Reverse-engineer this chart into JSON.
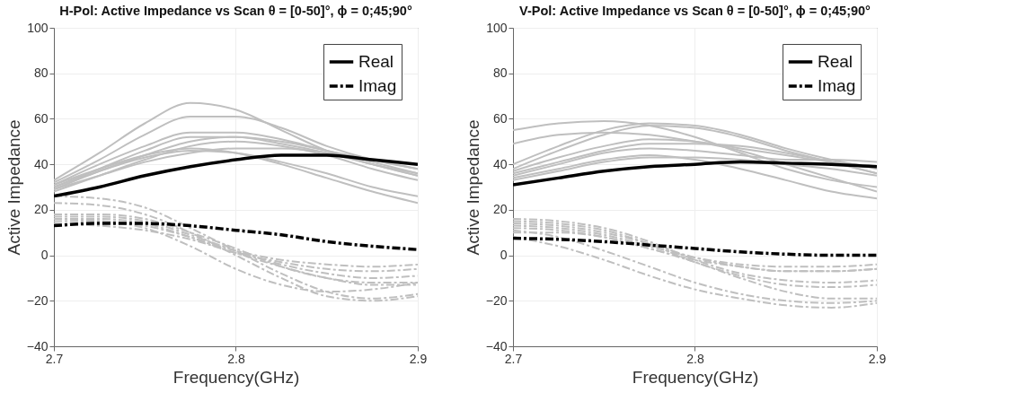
{
  "chart_data": [
    {
      "type": "line",
      "title": "H-Pol: Active Impedance vs Scan θ = [0-50]°, ϕ = 0;45;90°",
      "xlabel": "Frequency(GHz)",
      "ylabel": "Active Impedance",
      "x": [
        2.7,
        2.725,
        2.75,
        2.775,
        2.8,
        2.825,
        2.85,
        2.875,
        2.9
      ],
      "xlim": [
        2.7,
        2.9
      ],
      "xticks": [
        2.7,
        2.8,
        2.9
      ],
      "ylim": [
        -40,
        100
      ],
      "yticks": [
        -40,
        -20,
        0,
        20,
        40,
        60,
        80,
        100
      ],
      "grid": true,
      "legend": "top right",
      "marker": "none",
      "series": [
        {
          "color": "#bfbfbf",
          "line_style": "solid",
          "values": [
            33,
            45,
            58,
            67,
            64,
            55,
            46,
            40,
            35
          ]
        },
        {
          "color": "#bfbfbf",
          "line_style": "solid",
          "values": [
            32,
            42,
            53,
            61,
            61,
            56,
            48,
            42,
            38
          ]
        },
        {
          "color": "#bfbfbf",
          "line_style": "solid",
          "values": [
            31,
            40,
            48,
            54,
            54,
            51,
            46,
            42,
            38
          ]
        },
        {
          "color": "#bfbfbf",
          "line_style": "solid",
          "values": [
            30,
            38,
            46,
            52,
            52,
            49,
            45,
            40,
            36
          ]
        },
        {
          "color": "#bfbfbf",
          "line_style": "solid",
          "values": [
            29,
            37,
            44,
            50,
            52,
            50,
            46,
            41,
            36
          ]
        },
        {
          "color": "#bfbfbf",
          "line_style": "solid",
          "values": [
            28,
            35,
            42,
            48,
            50,
            48,
            44,
            38,
            33
          ]
        },
        {
          "color": "#bfbfbf",
          "line_style": "solid",
          "values": [
            30,
            37,
            43,
            46,
            45,
            41,
            36,
            30,
            26
          ]
        },
        {
          "color": "#bfbfbf",
          "line_style": "solid",
          "values": [
            31,
            38,
            44,
            47,
            45,
            40,
            34,
            28,
            23
          ]
        },
        {
          "color": "#bfbfbf",
          "line_style": "solid",
          "values": [
            29,
            35,
            41,
            45,
            47,
            47,
            45,
            40,
            35
          ]
        },
        {
          "color": "#bfbfbf",
          "line_style": "dashed",
          "values": [
            26,
            25,
            21,
            12,
            2,
            -8,
            -16,
            -19,
            -17
          ]
        },
        {
          "color": "#bfbfbf",
          "line_style": "dashed",
          "values": [
            23,
            22,
            18,
            10,
            0,
            -10,
            -18,
            -20,
            -18
          ]
        },
        {
          "color": "#bfbfbf",
          "line_style": "dashed",
          "values": [
            18,
            18,
            16,
            10,
            3,
            -5,
            -10,
            -12,
            -12
          ]
        },
        {
          "color": "#bfbfbf",
          "line_style": "dashed",
          "values": [
            17,
            17,
            15,
            9,
            2,
            -4,
            -8,
            -10,
            -9
          ]
        },
        {
          "color": "#bfbfbf",
          "line_style": "dashed",
          "values": [
            16,
            16,
            14,
            8,
            1,
            -3,
            -6,
            -7,
            -6
          ]
        },
        {
          "color": "#bfbfbf",
          "line_style": "dashed",
          "values": [
            15,
            15,
            13,
            8,
            2,
            -2,
            -4,
            -5,
            -4
          ]
        },
        {
          "color": "#bfbfbf",
          "line_style": "dashed",
          "values": [
            14,
            13,
            11,
            7,
            1,
            -5,
            -10,
            -13,
            -13
          ]
        },
        {
          "color": "#bfbfbf",
          "line_style": "dashed",
          "values": [
            16,
            15,
            12,
            4,
            -6,
            -13,
            -16,
            -15,
            -12
          ]
        },
        {
          "name": "Real",
          "color": "#000000",
          "line_style": "solid",
          "values": [
            26,
            30,
            35,
            39,
            42,
            44,
            44,
            42,
            40
          ]
        },
        {
          "name": "Imag",
          "color": "#000000",
          "line_style": "dashed",
          "values": [
            13,
            14,
            14,
            13,
            11,
            9,
            6,
            4,
            2.5
          ]
        }
      ]
    },
    {
      "type": "line",
      "title": "V-Pol: Active Impedance vs Scan θ = [0-50]°, ϕ = 0;45;90°",
      "xlabel": "Frequency(GHz)",
      "ylabel": "Active Impedance",
      "x": [
        2.7,
        2.725,
        2.75,
        2.775,
        2.8,
        2.825,
        2.85,
        2.875,
        2.9
      ],
      "xlim": [
        2.7,
        2.9
      ],
      "xticks": [
        2.7,
        2.8,
        2.9
      ],
      "ylim": [
        -40,
        100
      ],
      "yticks": [
        -40,
        -20,
        0,
        20,
        40,
        60,
        80,
        100
      ],
      "grid": true,
      "legend": "top right",
      "marker": "none",
      "series": [
        {
          "color": "#bfbfbf",
          "line_style": "solid",
          "values": [
            55,
            58,
            59,
            57,
            52,
            45,
            38,
            33,
            30
          ]
        },
        {
          "color": "#bfbfbf",
          "line_style": "solid",
          "values": [
            49,
            53,
            54,
            53,
            50,
            46,
            40,
            34,
            28
          ]
        },
        {
          "color": "#bfbfbf",
          "line_style": "solid",
          "values": [
            40,
            48,
            55,
            58,
            57,
            53,
            47,
            42,
            38
          ]
        },
        {
          "color": "#bfbfbf",
          "line_style": "solid",
          "values": [
            38,
            46,
            53,
            57,
            56,
            52,
            46,
            41,
            36
          ]
        },
        {
          "color": "#bfbfbf",
          "line_style": "solid",
          "values": [
            37,
            43,
            48,
            51,
            50,
            47,
            44,
            41,
            39
          ]
        },
        {
          "color": "#bfbfbf",
          "line_style": "solid",
          "values": [
            35,
            40,
            45,
            47,
            46,
            44,
            42,
            42,
            41
          ]
        },
        {
          "color": "#bfbfbf",
          "line_style": "solid",
          "values": [
            33,
            37,
            41,
            43,
            43,
            42,
            40,
            38,
            35
          ]
        },
        {
          "color": "#bfbfbf",
          "line_style": "solid",
          "values": [
            34,
            38,
            42,
            44,
            42,
            38,
            33,
            28,
            25
          ]
        },
        {
          "color": "#bfbfbf",
          "line_style": "solid",
          "values": [
            36,
            41,
            46,
            49,
            49,
            48,
            45,
            41,
            36
          ]
        },
        {
          "color": "#bfbfbf",
          "line_style": "dashed",
          "values": [
            16,
            15,
            12,
            6,
            -2,
            -8,
            -11,
            -12,
            -11
          ]
        },
        {
          "color": "#bfbfbf",
          "line_style": "dashed",
          "values": [
            15,
            14,
            11,
            5,
            -3,
            -9,
            -13,
            -14,
            -13
          ]
        },
        {
          "color": "#bfbfbf",
          "line_style": "dashed",
          "values": [
            14,
            13,
            10,
            5,
            -1,
            -5,
            -7,
            -7,
            -6
          ]
        },
        {
          "color": "#bfbfbf",
          "line_style": "dashed",
          "values": [
            13,
            12,
            9,
            4,
            -1,
            -4,
            -5,
            -5,
            -4
          ]
        },
        {
          "color": "#bfbfbf",
          "line_style": "dashed",
          "values": [
            12,
            11,
            8,
            3,
            -3,
            -10,
            -16,
            -19,
            -19
          ]
        },
        {
          "color": "#bfbfbf",
          "line_style": "dashed",
          "values": [
            8,
            4,
            -2,
            -9,
            -15,
            -19,
            -22,
            -23,
            -21
          ]
        },
        {
          "color": "#bfbfbf",
          "line_style": "dashed",
          "values": [
            11,
            8,
            2,
            -5,
            -12,
            -17,
            -20,
            -21,
            -20
          ]
        },
        {
          "color": "#bfbfbf",
          "line_style": "dashed",
          "values": [
            10,
            10,
            8,
            3,
            -2,
            -5,
            -7,
            -7,
            -6
          ]
        },
        {
          "name": "Real",
          "color": "#000000",
          "line_style": "solid",
          "values": [
            31,
            34,
            37,
            39,
            40,
            41,
            40.5,
            40,
            39
          ]
        },
        {
          "name": "Imag",
          "color": "#000000",
          "line_style": "dashed",
          "values": [
            7.5,
            7,
            6,
            4.5,
            3,
            1.5,
            0.5,
            0,
            0
          ]
        }
      ]
    }
  ]
}
